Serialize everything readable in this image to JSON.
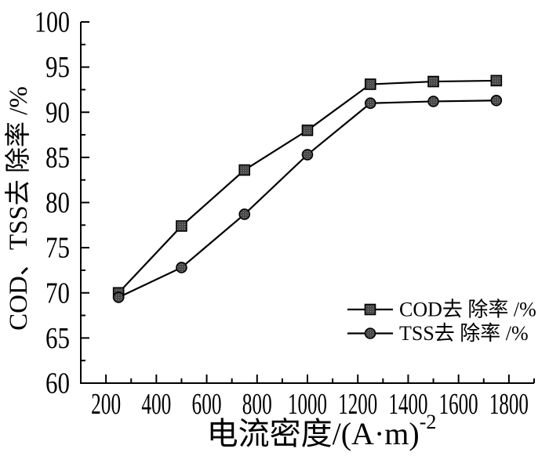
{
  "figure": {
    "background": "#ffffff"
  },
  "chart_data": {
    "type": "line",
    "title": "",
    "xlabel": "电流密度/(A·m)⁻²",
    "xlabel_main": "电流密度/(A·m)",
    "xlabel_sup": "-2",
    "ylabel": "COD、TSS去 除率 /%",
    "xlim": [
      100,
      1900
    ],
    "ylim": [
      60,
      100
    ],
    "x_major_ticks": [
      200,
      400,
      600,
      800,
      1000,
      1200,
      1400,
      1600,
      1800
    ],
    "x_minor_ticks": [
      300,
      500,
      700,
      900,
      1100,
      1300,
      1500,
      1700,
      1900
    ],
    "y_major_ticks": [
      60,
      65,
      70,
      75,
      80,
      85,
      90,
      95,
      100
    ],
    "y_minor_ticks": [
      62.5,
      67.5,
      72.5,
      77.5,
      82.5,
      87.5,
      92.5,
      97.5
    ],
    "grid": false,
    "legend_position": "inside-right-lower",
    "x": [
      250,
      500,
      750,
      1000,
      1250,
      1500,
      1750
    ],
    "series": [
      {
        "name": "COD去 除率 /%",
        "marker": "square",
        "values": [
          70.0,
          77.4,
          83.6,
          88.0,
          93.1,
          93.4,
          93.5
        ]
      },
      {
        "name": "TSS去 除率 /%",
        "marker": "circle",
        "values": [
          69.5,
          72.8,
          78.7,
          85.3,
          91.0,
          91.2,
          91.3
        ]
      }
    ],
    "colors": {
      "line": "#000000",
      "marker_fill": "#4a4a4a",
      "marker_dot": "#8c8c8c",
      "marker_edge": "#000000",
      "text": "#000000",
      "axis": "#000000",
      "background": "#ffffff"
    }
  }
}
